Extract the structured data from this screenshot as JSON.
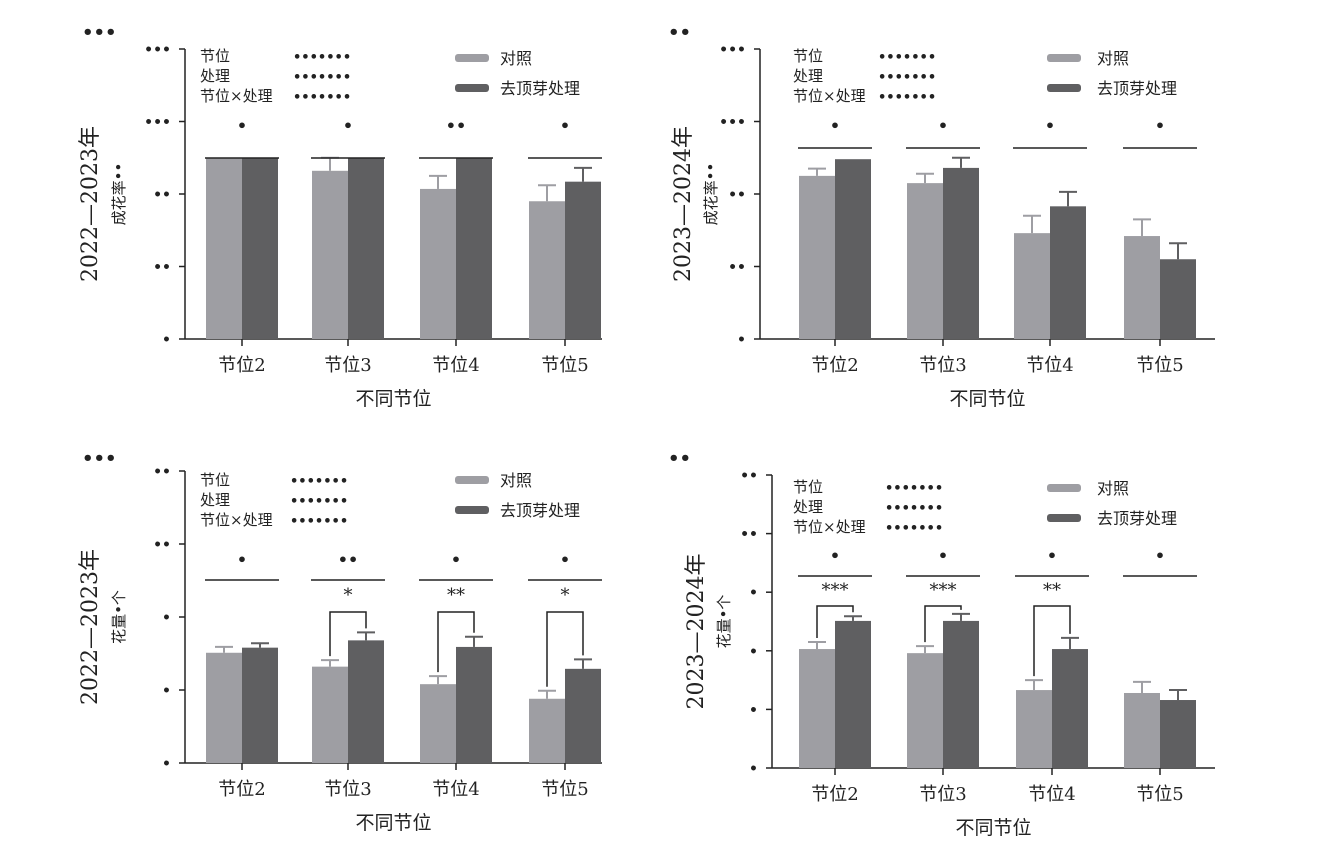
{
  "chart_data": [
    {
      "type": "bar",
      "panel_label": "•••",
      "ylabel_main": "2022—2023年",
      "ylabel_sub": "成花率••",
      "xlabel": "不同节位",
      "categories": [
        "节位2",
        "节位3",
        "节位4",
        "节位5"
      ],
      "ylim": [
        0,
        4
      ],
      "yticks": [
        0,
        1,
        2,
        3,
        4
      ],
      "ytick_labels": [
        "•",
        "••",
        "••",
        "•••",
        "•••"
      ],
      "series": [
        {
          "name": "对照",
          "values": [
            2.5,
            2.32,
            2.07,
            1.9
          ],
          "errors": [
            0,
            0.18,
            0.18,
            0.22
          ]
        },
        {
          "name": "去顶芽处理",
          "values": [
            2.5,
            2.5,
            2.5,
            2.17
          ],
          "errors": [
            0,
            0,
            0,
            0.19
          ]
        }
      ],
      "group_sig": [
        "•",
        "•",
        "••",
        "•"
      ],
      "pair_sig": [
        "",
        "",
        "",
        ""
      ],
      "stats": [
        {
          "factor": "节位",
          "value": "•••••••"
        },
        {
          "factor": "处理",
          "value": "•••••••"
        },
        {
          "factor": "节位×处理",
          "value": "•••••••"
        }
      ],
      "legend_position": "top-right"
    },
    {
      "type": "bar",
      "panel_label": "••",
      "ylabel_main": "2023—2024年",
      "ylabel_sub": "成花率••",
      "xlabel": "不同节位",
      "categories": [
        "节位2",
        "节位3",
        "节位4",
        "节位5"
      ],
      "ylim": [
        0,
        4
      ],
      "yticks": [
        0,
        1,
        2,
        3,
        4
      ],
      "ytick_labels": [
        "•",
        "••",
        "••",
        "•••",
        "•••"
      ],
      "series": [
        {
          "name": "对照",
          "values": [
            2.25,
            2.15,
            1.46,
            1.42
          ],
          "errors": [
            0.1,
            0.13,
            0.24,
            0.23
          ]
        },
        {
          "name": "去顶芽处理",
          "values": [
            2.48,
            2.36,
            1.83,
            1.1
          ],
          "errors": [
            0,
            0.14,
            0.2,
            0.22
          ]
        }
      ],
      "group_sig": [
        "•",
        "•",
        "•",
        "•"
      ],
      "pair_sig": [
        "",
        "",
        "",
        ""
      ],
      "stats": [
        {
          "factor": "节位",
          "value": "•••••••"
        },
        {
          "factor": "处理",
          "value": "•••••••"
        },
        {
          "factor": "节位×处理",
          "value": "•••••••"
        }
      ],
      "legend_position": "top-right"
    },
    {
      "type": "bar",
      "panel_label": "•••",
      "ylabel_main": "2022—2023年",
      "ylabel_sub": "花量•个",
      "xlabel": "不同节位",
      "categories": [
        "节位2",
        "节位3",
        "节位4",
        "节位5"
      ],
      "ylim": [
        0,
        4
      ],
      "yticks": [
        0,
        1,
        2,
        3,
        4
      ],
      "ytick_labels": [
        "•",
        "•",
        "•",
        "••",
        "••"
      ],
      "series": [
        {
          "name": "对照",
          "values": [
            1.51,
            1.32,
            1.08,
            0.88
          ],
          "errors": [
            0.08,
            0.09,
            0.11,
            0.11
          ]
        },
        {
          "name": "去顶芽处理",
          "values": [
            1.58,
            1.68,
            1.59,
            1.29
          ],
          "errors": [
            0.06,
            0.11,
            0.14,
            0.13
          ]
        }
      ],
      "group_sig": [
        "•",
        "••",
        "•",
        "•"
      ],
      "pair_sig": [
        "",
        "*",
        "**",
        "*"
      ],
      "stats": [
        {
          "factor": "节位",
          "value": "•••••••"
        },
        {
          "factor": "处理",
          "value": "•••••••"
        },
        {
          "factor": "节位×处理",
          "value": "•••••••"
        }
      ],
      "legend_position": "top-right"
    },
    {
      "type": "bar",
      "panel_label": "••",
      "ylabel_main": "2023—2024年",
      "ylabel_sub": "花量•个",
      "xlabel": "不同节位",
      "categories": [
        "节位2",
        "节位3",
        "节位4",
        "节位5"
      ],
      "ylim": [
        0,
        5
      ],
      "yticks": [
        0,
        1,
        2,
        3,
        4,
        5
      ],
      "ytick_labels": [
        "•",
        "•",
        "•",
        "•",
        "••",
        "••"
      ],
      "series": [
        {
          "name": "对照",
          "values": [
            2.03,
            1.96,
            1.33,
            1.28
          ],
          "errors": [
            0.12,
            0.12,
            0.17,
            0.19
          ]
        },
        {
          "name": "去顶芽处理",
          "values": [
            2.51,
            2.51,
            2.03,
            1.16
          ],
          "errors": [
            0.08,
            0.12,
            0.19,
            0.17
          ]
        }
      ],
      "group_sig": [
        "•",
        "•",
        "•",
        "•"
      ],
      "pair_sig": [
        "***",
        "***",
        "**",
        ""
      ],
      "stats": [
        {
          "factor": "节位",
          "value": "•••••••"
        },
        {
          "factor": "处理",
          "value": "•••••••"
        },
        {
          "factor": "节位×处理",
          "value": "•••••••"
        }
      ],
      "legend_position": "top-right"
    }
  ],
  "colors": {
    "control": "#9e9ea3",
    "treatment": "#5f5f61",
    "axis": "#222222"
  }
}
